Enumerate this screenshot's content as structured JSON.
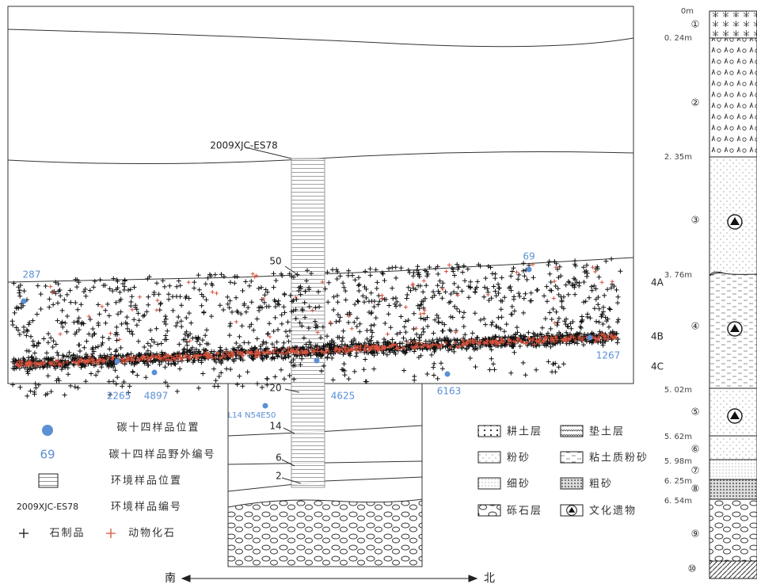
{
  "profile": {
    "env_sample_id": "2009XJC-ES78",
    "env_sample_numbers": [
      "50",
      "20",
      "14",
      "6",
      "2"
    ],
    "c14_numbers": [
      "287",
      "69",
      "1267",
      "2265",
      "4897",
      "4625",
      "6163"
    ],
    "grid_label": "L14 N54E50",
    "layers": [
      "4A",
      "4B",
      "4C"
    ]
  },
  "legend": {
    "c14_position": "碳十四样品位置",
    "c14_number_example": "69",
    "c14_number": "碳十四样品野外编号",
    "env_position": "环境样品位置",
    "env_number_example": "2009XJC-ES78",
    "env_number": "环境样品编号",
    "stone_artifact": "石制品",
    "animal_fossil": "动物化石"
  },
  "direction": {
    "south": "南",
    "north": "北"
  },
  "lithology_legend": [
    "耕土层",
    "垫土层",
    "粉砂",
    "粘土质粉砂",
    "细砂",
    "粗砂",
    "砾石层",
    "文化遗物"
  ],
  "column": {
    "depths": [
      "0m",
      "0. 24m",
      "2. 35m",
      "3. 76m",
      "5. 02m",
      "5. 62m",
      "5. 98m",
      "6. 25m",
      "6. 54m"
    ],
    "layers": [
      "①",
      "②",
      "③",
      "④",
      "⑤",
      "⑥",
      "⑦",
      "⑧",
      "⑨",
      "⑩"
    ]
  }
}
